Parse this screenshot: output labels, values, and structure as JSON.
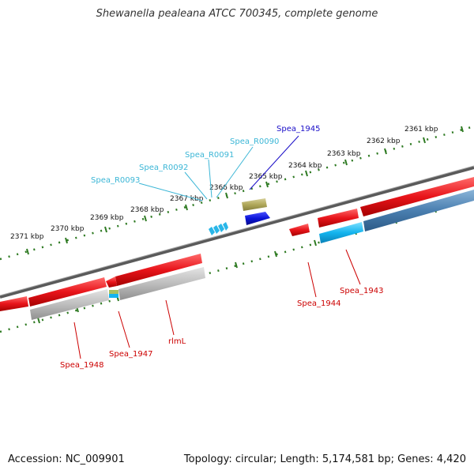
{
  "title": "Shewanella pealeana ATCC 700345, complete genome",
  "footer": {
    "accession": "Accession: NC_009901",
    "summary": "Topology: circular; Length: 5,174,581 bp; Genes: 4,420"
  },
  "scale_labels": [
    "2361 kbp",
    "2362 kbp",
    "2363 kbp",
    "2364 kbp",
    "2365 kbp",
    "2366 kbp",
    "2367 kbp",
    "2368 kbp",
    "2369 kbp",
    "2370 kbp",
    "2371 kbp"
  ],
  "gene_labels": {
    "spea_1945": "Spea_1945",
    "spea_r0090": "Spea_R0090",
    "spea_r0091": "Spea_R0091",
    "spea_r0092": "Spea_R0092",
    "spea_r0093": "Spea_R0093",
    "spea_1943": "Spea_1943",
    "spea_1944": "Spea_1944",
    "rlml": "rlmL",
    "spea_1947": "Spea_1947",
    "spea_1948": "Spea_1948"
  },
  "colors": {
    "cds": "#e8141a",
    "cds_light": "#ff5a5a",
    "trna": "#29b6e8",
    "rrna_blue": "#0a14d8",
    "olive": "#b0a85a",
    "gray_gene": "#b8b8b8",
    "steel_blue": "#4a7fb0",
    "label_red": "#cc0000",
    "label_cyan": "#3bb6d6",
    "label_blue": "#1a0ec8",
    "ruler_green": "#2e7a22",
    "backbone": "#6b6b6b"
  }
}
